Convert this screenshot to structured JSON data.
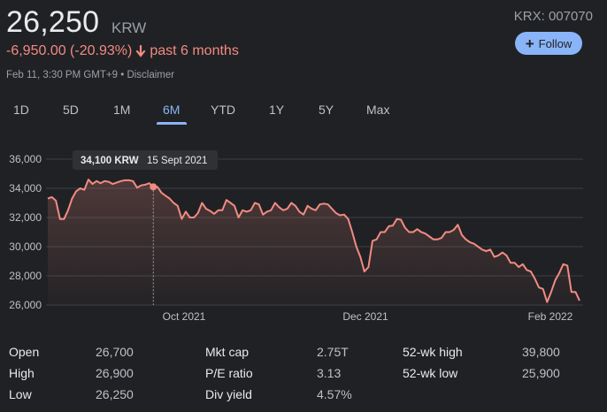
{
  "header": {
    "price": "26,250",
    "currency": "KRW",
    "ticker": "KRX: 007070",
    "follow_label": "Follow",
    "change": "-6,950.00 (-20.93%)",
    "change_period": "past 6 months",
    "timestamp": "Feb 11, 3:30 PM GMT+9 • Disclaimer"
  },
  "tabs": [
    "1D",
    "5D",
    "1M",
    "6M",
    "YTD",
    "1Y",
    "5Y",
    "Max"
  ],
  "active_tab": "6M",
  "colors": {
    "line": "#f28b82",
    "accent": "#8ab4f8",
    "background": "#202124",
    "grid": "#3c4043"
  },
  "tooltip": {
    "value": "34,100 KRW",
    "date": "15 Sept 2021"
  },
  "chart_data": {
    "type": "line",
    "y_ticks": [
      "36,000",
      "34,000",
      "32,000",
      "30,000",
      "28,000",
      "26,000"
    ],
    "x_ticks": [
      "Oct 2021",
      "Dec 2021",
      "Feb 2022"
    ],
    "ylim": [
      26000,
      36000
    ],
    "grid": true,
    "values": [
      33300,
      33400,
      33150,
      31900,
      31900,
      32500,
      33300,
      33800,
      34000,
      33900,
      34600,
      34300,
      34500,
      34350,
      34500,
      34450,
      34300,
      34400,
      34500,
      34550,
      34550,
      34500,
      34050,
      34200,
      34250,
      34350,
      34100,
      34100,
      33700,
      33500,
      33300,
      33000,
      32800,
      31900,
      32400,
      32000,
      32000,
      32300,
      33000,
      32600,
      32450,
      32250,
      32500,
      32500,
      33200,
      33000,
      32800,
      32000,
      32500,
      32400,
      32500,
      33000,
      32900,
      32200,
      32400,
      32500,
      33000,
      32700,
      32500,
      32600,
      33000,
      32800,
      32400,
      32200,
      32800,
      32600,
      32500,
      32900,
      32950,
      32900,
      32600,
      32300,
      32150,
      32200,
      31900,
      31000,
      30000,
      29300,
      28300,
      28600,
      30400,
      30500,
      31000,
      31000,
      31400,
      31450,
      31900,
      31850,
      31300,
      31000,
      31000,
      31200,
      31000,
      30900,
      30700,
      30500,
      30500,
      30600,
      31000,
      31000,
      31150,
      31500,
      30800,
      30500,
      30300,
      30200,
      30000,
      29800,
      29700,
      29800,
      29300,
      29400,
      29600,
      29400,
      28900,
      28900,
      28600,
      28800,
      28400,
      28300,
      27800,
      27200,
      27100,
      26200,
      26900,
      27700,
      28200,
      28800,
      28700,
      26900,
      26900,
      26300
    ]
  },
  "stats": [
    {
      "label": "Open",
      "value": "26,700"
    },
    {
      "label": "High",
      "value": "26,900"
    },
    {
      "label": "Low",
      "value": "26,250"
    },
    {
      "label": "Mkt cap",
      "value": "2.75T"
    },
    {
      "label": "P/E ratio",
      "value": "3.13"
    },
    {
      "label": "Div yield",
      "value": "4.57%"
    },
    {
      "label": "52-wk high",
      "value": "39,800"
    },
    {
      "label": "52-wk low",
      "value": "25,900"
    }
  ]
}
